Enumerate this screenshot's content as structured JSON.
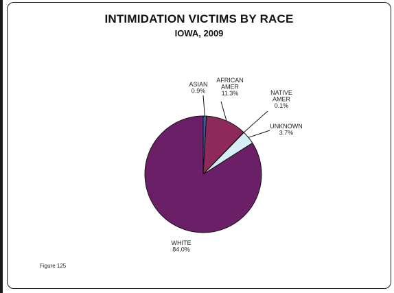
{
  "chart_data": {
    "type": "pie",
    "title": "INTIMIDATION VICTIMS BY RACE",
    "subtitle": "IOWA, 2009",
    "slices": [
      {
        "name": "ASIAN",
        "name_lines": [
          "ASIAN"
        ],
        "value": 0.9,
        "value_label": "0.9%",
        "color": "#3a5a9e"
      },
      {
        "name": "AFRICAN AMER",
        "name_lines": [
          "AFRICAN",
          "AMER"
        ],
        "value": 11.3,
        "value_label": "11.3%",
        "color": "#8e2a5b"
      },
      {
        "name": "NATIVE AMER",
        "name_lines": [
          "NATIVE",
          "AMER"
        ],
        "value": 0.1,
        "value_label": "0.1%",
        "color": "#d9d2b0"
      },
      {
        "name": "UNKNOWN",
        "name_lines": [
          "UNKNOWN"
        ],
        "value": 3.7,
        "value_label": "3.7%",
        "color": "#d6eef5"
      },
      {
        "name": "WHITE",
        "name_lines": [
          "WHITE"
        ],
        "value": 84.0,
        "value_label": "84.0%",
        "color": "#6a1f66"
      }
    ],
    "legend": "none"
  },
  "footnote": "Figure 125"
}
